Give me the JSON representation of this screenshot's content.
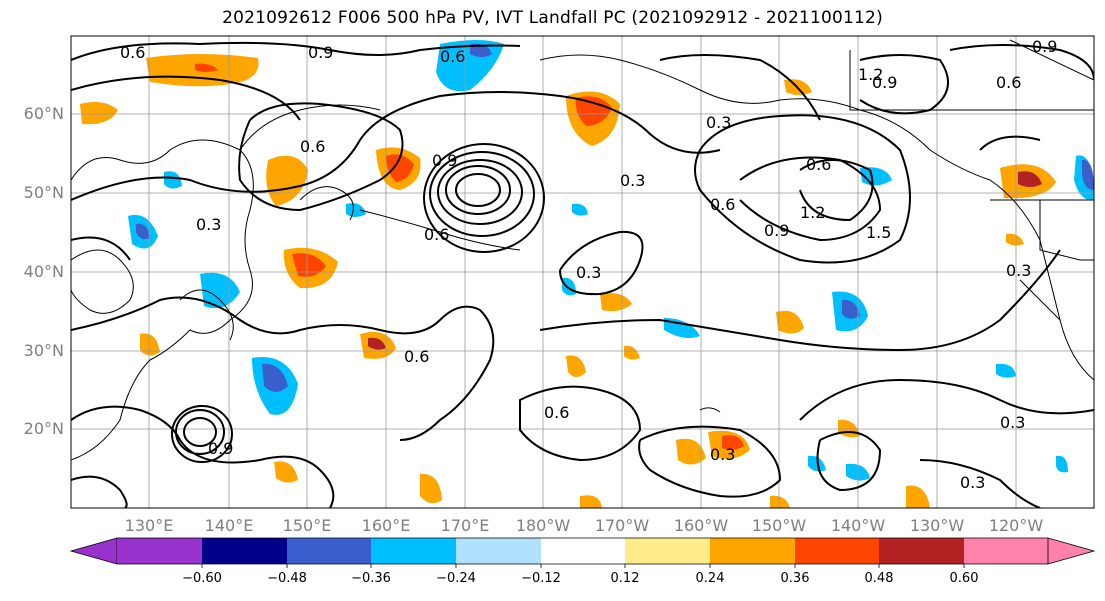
{
  "title": "2021092612 F006 500 hPa PV, IVT Landfall PC (2021092912 - 2021100112)",
  "map": {
    "lat_labels": [
      "60°N",
      "50°N",
      "40°N",
      "30°N",
      "20°N"
    ],
    "lon_labels": [
      "130°E",
      "140°E",
      "150°E",
      "160°E",
      "170°E",
      "180°W",
      "170°W",
      "160°W",
      "150°W",
      "140°W",
      "130°W",
      "120°W"
    ],
    "contour_labels": [
      "0.6",
      "0.9",
      "0.6",
      "1.2",
      "0.9",
      "0.6",
      "0.9",
      "0.6",
      "0.3",
      "0.3",
      "0.9",
      "1.2",
      "1.5",
      "0.9",
      "0.6",
      "0.3",
      "0.6",
      "0.3",
      "0.6",
      "0.3",
      "0.6",
      "0.3",
      "0.3",
      "0.3",
      "0.6",
      "0.9"
    ]
  },
  "colorbar": {
    "ticks": [
      "−0.60",
      "−0.48",
      "−0.36",
      "−0.24",
      "−0.12",
      "0.12",
      "0.24",
      "0.36",
      "0.48",
      "0.60"
    ],
    "colors": [
      "#9932cc",
      "#00008b",
      "#3a5fcd",
      "#00bfff",
      "#b0e2ff",
      "#ffffff",
      "#ffec8b",
      "#ffa500",
      "#ff4500",
      "#b22222",
      "#ff82ab"
    ]
  }
}
